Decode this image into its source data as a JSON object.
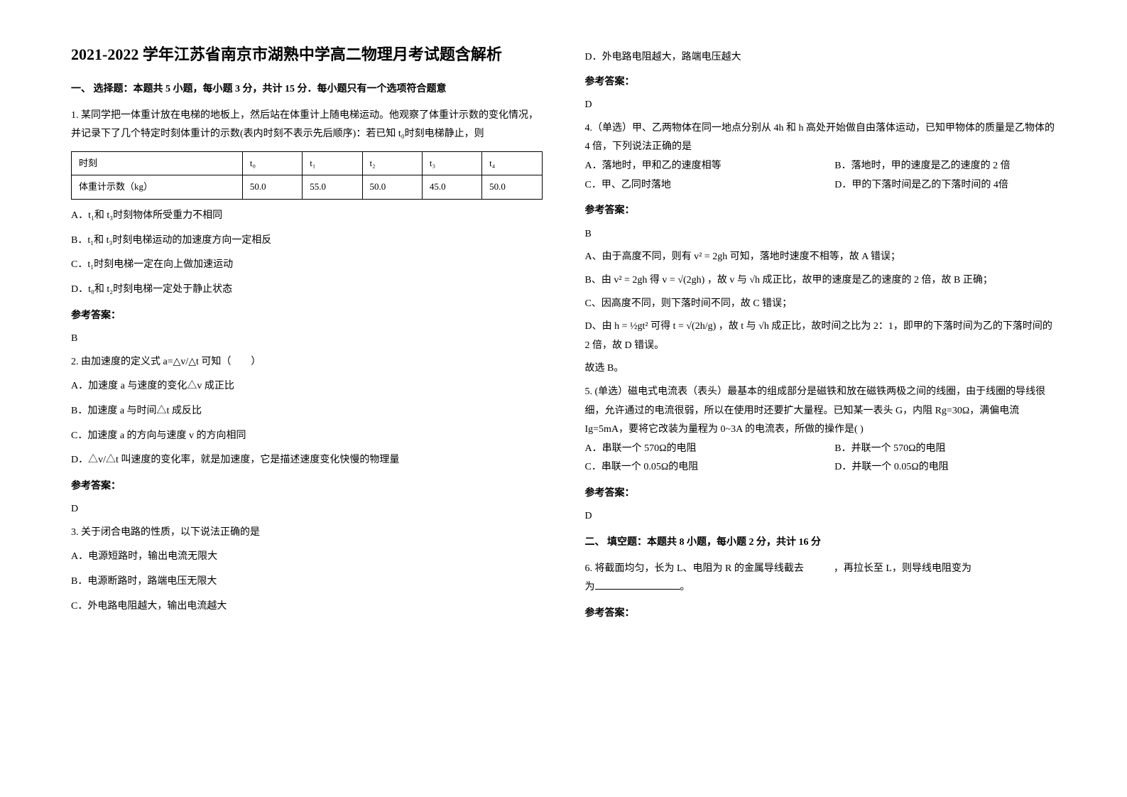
{
  "title": "2021-2022 学年江苏省南京市湖熟中学高二物理月考试题含解析",
  "section1": {
    "heading": "一、 选择题：本题共 5 小题，每小题 3 分，共计 15 分．每小题只有一个选项符合题意"
  },
  "q1": {
    "intro": "1. 某同学把一体重计放在电梯的地板上，然后站在体重计上随电梯运动。他观察了体重计示数的变化情况，并记录下了几个特定时刻体重计的示数(表内时刻不表示先后顺序)：若已知 t₀时刻电梯静止，则",
    "table": {
      "row1": [
        "时刻",
        "t₀",
        "t₁",
        "t₂",
        "t₃",
        "t₄"
      ],
      "row2": [
        "体重计示数（kg）",
        "50.0",
        "55.0",
        "50.0",
        "45.0",
        "50.0"
      ]
    },
    "optA": "A．t₁和 t₃时刻物体所受重力不相同",
    "optB": "B．t₁和 t₃时刻电梯运动的加速度方向一定相反",
    "optC": "C．t₁时刻电梯一定在向上做加速运动",
    "optD": "D．t₀和 t₂时刻电梯一定处于静止状态",
    "answerLabel": "参考答案：",
    "answer": "B"
  },
  "q2": {
    "intro": "2. 由加速度的定义式 a=△v/△t 可知（　　）",
    "optA": "A．加速度 a 与速度的变化△v 成正比",
    "optB": "B．加速度 a 与时间△t 成反比",
    "optC": "C．加速度 a 的方向与速度 v 的方向相同",
    "optD": "D．△v/△t 叫速度的变化率，就是加速度，它是描述速度变化快慢的物理量",
    "answerLabel": "参考答案：",
    "answer": "D"
  },
  "q3": {
    "intro": "3. 关于闭合电路的性质，以下说法正确的是",
    "optA": "A．电源短路时，输出电流无限大",
    "optB": "B．电源断路时，路端电压无限大",
    "optC": "C．外电路电阻越大，输出电流越大",
    "optD": "D．外电路电阻越大，路端电压越大",
    "answerLabel": "参考答案：",
    "answer": "D"
  },
  "q4": {
    "intro": "4.（单选）甲、乙两物体在同一地点分别从 4h 和 h 高处开始做自由落体运动，已知甲物体的质量是乙物体的 4 倍，下列说法正确的是",
    "optA": "A．落地时，甲和乙的速度相等",
    "optB": "B．落地时，甲的速度是乙的速度的 2 倍",
    "optC": "C．甲、乙同时落地",
    "optD": "D．甲的下落时间是乙的下落时间的 4倍",
    "answerLabel": "参考答案：",
    "answer": "B",
    "explA": "A、由于高度不同，则有 v² = 2gh 可知，落地时速度不相等，故 A 错误；",
    "explB": "B、由 v² = 2gh 得 v = √(2gh) ，故 v 与 √h 成正比，故甲的速度是乙的速度的 2 倍，故 B 正确；",
    "explC": "C、因高度不同，则下落时间不同，故 C 错误；",
    "explD": "D、由 h = ½gt² 可得 t = √(2h/g) ，故 t 与 √h 成正比，故时间之比为 2：1，即甲的下落时间为乙的下落时间的 2 倍，故 D 错误。",
    "conclusion": "故选 B。"
  },
  "q5": {
    "intro": "5. (单选）磁电式电流表（表头）最基本的组成部分是磁铁和放在磁铁两极之间的线圈，由于线圈的导线很细，允许通过的电流很弱，所以在使用时还要扩大量程。已知某一表头 G，内阻 Rg=30Ω，满偏电流 Ig=5mA，要将它改装为量程为 0~3A 的电流表，所做的操作是(    )",
    "optA": "A．串联一个 570Ω的电阻",
    "optB": "B．并联一个 570Ω的电阻",
    "optC": "C．串联一个 0.05Ω的电阻",
    "optD": "D．并联一个 0.05Ω的电阻",
    "answerLabel": "参考答案：",
    "answer": "D"
  },
  "section2": {
    "heading": "二、 填空题：本题共 8 小题，每小题 2 分，共计 16 分"
  },
  "q6": {
    "intro": "6. 将截面均匀，长为 L、电阻为 R 的金属导线截去　　　，再拉长至 L，则导线电阻变为",
    "intro2": "。",
    "answerLabel": "参考答案："
  }
}
